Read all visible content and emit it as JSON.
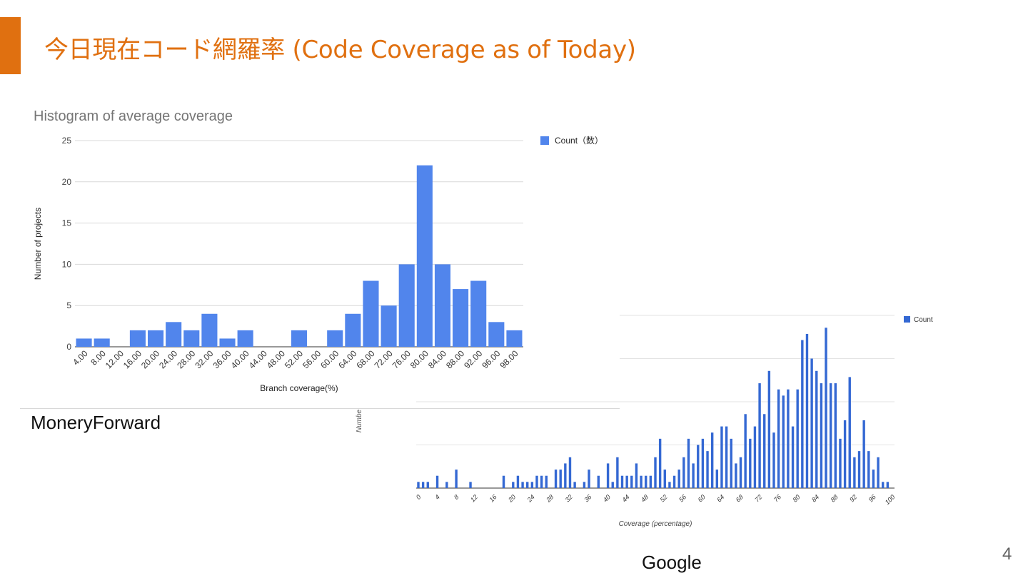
{
  "slide": {
    "title": "今日現在コード網羅率 (Code Coverage as of Today)",
    "page_number": "4",
    "label_left": "MoneryForward",
    "label_right": "Google",
    "accent_color": "#e07010"
  },
  "chart_data": [
    {
      "type": "bar",
      "title": "Histogram of average coverage",
      "xlabel": "Branch coverage(%)",
      "ylabel": "Number of projects",
      "categories": [
        "4.00",
        "8.00",
        "12.00",
        "16.00",
        "20.00",
        "24.00",
        "28.00",
        "32.00",
        "36.00",
        "40.00",
        "44.00",
        "48.00",
        "52.00",
        "56.00",
        "60.00",
        "64.00",
        "68.00",
        "72.00",
        "76.00",
        "80.00",
        "84.00",
        "88.00",
        "92.00",
        "96.00",
        "98.00"
      ],
      "series": [
        {
          "name": "Count（数）",
          "values": [
            1,
            1,
            0,
            2,
            2,
            3,
            2,
            4,
            1,
            2,
            0,
            0,
            2,
            0,
            2,
            4,
            8,
            5,
            10,
            22,
            10,
            7,
            8,
            3,
            2
          ],
          "color": "#5185ec"
        }
      ],
      "yticks": [
        "0",
        "5",
        "10",
        "15",
        "20",
        "25"
      ],
      "ylim": [
        0,
        25
      ],
      "grid": true,
      "legend": "top-right"
    },
    {
      "type": "bar",
      "xlabel": "Coverage (percentage)",
      "ylabel": "Numbe",
      "xticks": [
        "0",
        "4",
        "8",
        "12",
        "16",
        "20",
        "24",
        "28",
        "32",
        "36",
        "40",
        "44",
        "48",
        "52",
        "56",
        "60",
        "64",
        "68",
        "72",
        "76",
        "80",
        "84",
        "88",
        "92",
        "96",
        "100"
      ],
      "x": [
        0,
        1,
        2,
        3,
        4,
        5,
        6,
        7,
        8,
        9,
        10,
        11,
        12,
        13,
        14,
        15,
        16,
        17,
        18,
        19,
        20,
        21,
        22,
        23,
        24,
        25,
        26,
        27,
        28,
        29,
        30,
        31,
        32,
        33,
        34,
        35,
        36,
        37,
        38,
        39,
        40,
        41,
        42,
        43,
        44,
        45,
        46,
        47,
        48,
        49,
        50,
        51,
        52,
        53,
        54,
        55,
        56,
        57,
        58,
        59,
        60,
        61,
        62,
        63,
        64,
        65,
        66,
        67,
        68,
        69,
        70,
        71,
        72,
        73,
        74,
        75,
        76,
        77,
        78,
        79,
        80,
        81,
        82,
        83,
        84,
        85,
        86,
        87,
        88,
        89,
        90,
        91,
        92,
        93,
        94,
        95,
        96,
        97,
        98,
        99,
        100
      ],
      "series": [
        {
          "name": "Count",
          "values": [
            0.5,
            0.5,
            0.5,
            0,
            1,
            0,
            0.5,
            0,
            1.5,
            0,
            0,
            0.5,
            0,
            0,
            0,
            0,
            0,
            0,
            1,
            0,
            0.5,
            1,
            0.5,
            0.5,
            0.5,
            1,
            1,
            1,
            0,
            1.5,
            1.5,
            2,
            2.5,
            0.5,
            0,
            0.5,
            1.5,
            0,
            1,
            0,
            2,
            0.5,
            2.5,
            1,
            1,
            1,
            2,
            1,
            1,
            1,
            2.5,
            4,
            1.5,
            0.5,
            1,
            1.5,
            2.5,
            4,
            2,
            3.5,
            4,
            3,
            4.5,
            1.5,
            5,
            5,
            4,
            2,
            2.5,
            6,
            4,
            5,
            8.5,
            6,
            9.5,
            4.5,
            8,
            7.5,
            8,
            5,
            8,
            12,
            12.5,
            10.5,
            9.5,
            8.5,
            13,
            8.5,
            8.5,
            4,
            5.5,
            9,
            2.5,
            3,
            5.5,
            3,
            1.5,
            2.5,
            0.5,
            0.5,
            0
          ],
          "color": "#3468d3"
        }
      ],
      "ylim": [
        0,
        14
      ],
      "grid": true,
      "legend": "top-right"
    }
  ]
}
